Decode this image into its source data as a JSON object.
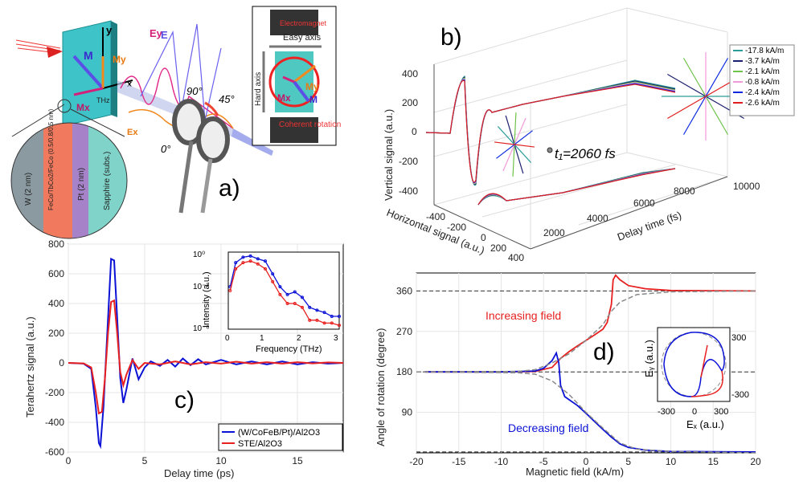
{
  "panels": {
    "a": {
      "label": "a)",
      "layer_labels": [
        "W (2 nm)",
        "FeCo/TbCo2/FeCo (0.5/0.8/0.5 nm)",
        "Pt (2 nm)",
        "Sapphire (subs.)"
      ],
      "vector_labels": {
        "M": "M",
        "My": "My",
        "Mx": "Mx",
        "Ey": "Ey",
        "Ex": "Ex",
        "E": "E",
        "y": "y",
        "x": "x",
        "THz": "THz"
      },
      "angles": [
        "90°",
        "45°",
        "0°"
      ],
      "inset": {
        "top": "Electromagnet",
        "easy": "Easy axis",
        "hard": "Hard axis",
        "bottom": "Coherent rotation",
        "M": "M",
        "My": "My",
        "Mx": "Mx"
      }
    },
    "b": {
      "label": "b)",
      "annotation": "t₁=2060 fs",
      "legend": [
        "-17.8 kA/m",
        "-3.7 kA/m",
        "-2.1 kA/m",
        "-0.8 kA/m",
        "-2.4 kA/m",
        "-2.6 kA/m"
      ],
      "colors": [
        "#2a9d9a",
        "#1a1f6e",
        "#6fc24a",
        "#f29ad8",
        "#0b2ae0",
        "#e02020"
      ],
      "ylabel": "Vertical signal (a.u.)",
      "xlabel": "Horizontal signal (a.u.)",
      "zlabel": "Delay time (fs)",
      "yticks": [
        "400",
        "200",
        "0",
        "-200",
        "-400"
      ],
      "xticks": [
        "-400",
        "-200",
        "0",
        "200",
        "400"
      ],
      "zticks": [
        "2000",
        "4000",
        "6000",
        "8000",
        "10000"
      ]
    },
    "c": {
      "label": "c)",
      "xlabel": "Delay time (ps)",
      "ylabel": "Terahertz signal (a.u.)",
      "legend": [
        "(W/CoFeB/Pt)/Al2O3",
        "STE/Al2O3"
      ],
      "inset": {
        "xlabel": "Frequency (THz)",
        "ylabel": "Intensity (a.u.)",
        "yticks": [
          "10⁰",
          "10⁻³",
          "10⁻⁶"
        ],
        "xticks": [
          "0",
          "1",
          "2",
          "3"
        ]
      }
    },
    "d": {
      "label": "d)",
      "xlabel": "Magnetic field (kA/m)",
      "ylabel": "Angle of rotation (degree)",
      "annotations": [
        "Increasing field",
        "Decreasing field"
      ],
      "inset": {
        "xlabel": "Eₓ (a.u.)",
        "ylabel": "Eᵧ (a.u.)",
        "xticks": [
          "-300",
          "0",
          "300"
        ],
        "yticks": [
          "300",
          "-300"
        ]
      }
    }
  },
  "chart_data": [
    {
      "type": "line",
      "panel": "c",
      "xlabel": "Delay time (ps)",
      "ylabel": "Terahertz signal (a.u.)",
      "xlim": [
        0,
        18
      ],
      "ylim": [
        -600,
        800
      ],
      "xticks": [
        0,
        5,
        10,
        15
      ],
      "yticks": [
        -600,
        -400,
        -200,
        0,
        200,
        400,
        600,
        800
      ],
      "grid": true,
      "legend_position": "bottom-right",
      "series": [
        {
          "name": "(W/CoFeB/Pt)/Al2O3",
          "color": "#0b12d6",
          "x": [
            0,
            1.0,
            1.5,
            1.8,
            2.0,
            2.1,
            2.3,
            2.6,
            2.8,
            3.0,
            3.2,
            3.4,
            3.6,
            3.8,
            4.2,
            4.6,
            5.0,
            5.4,
            6.0,
            6.5,
            7.0,
            7.5,
            8.0,
            8.5,
            9.0,
            10.0,
            11.0,
            12.0,
            13.0,
            14.0,
            15.0,
            16.0,
            17.0,
            18.0
          ],
          "y": [
            0,
            -5,
            -40,
            -300,
            -540,
            -560,
            -300,
            300,
            700,
            690,
            300,
            -100,
            -270,
            -180,
            30,
            -110,
            -30,
            10,
            -20,
            20,
            -25,
            30,
            -15,
            25,
            -10,
            20,
            -10,
            10,
            -10,
            10,
            -10,
            5,
            -5,
            0
          ]
        },
        {
          "name": "STE/Al2O3",
          "color": "#e82020",
          "x": [
            0,
            1.0,
            1.5,
            1.8,
            2.0,
            2.2,
            2.4,
            2.6,
            2.8,
            3.0,
            3.2,
            3.4,
            3.6,
            3.8,
            4.2,
            4.6,
            5.0,
            6.0,
            7.0,
            8.0,
            9.0,
            10.0,
            11.0,
            12.0,
            13.0,
            14.0,
            15.0,
            16.0,
            17.0,
            18.0
          ],
          "y": [
            0,
            -3,
            -30,
            -200,
            -340,
            -330,
            -100,
            200,
            410,
            420,
            200,
            -60,
            -150,
            -80,
            20,
            -40,
            0,
            -10,
            10,
            -10,
            5,
            -5,
            8,
            -5,
            5,
            -5,
            5,
            -3,
            3,
            0
          ]
        }
      ]
    },
    {
      "type": "line",
      "panel": "c-inset",
      "xlabel": "Frequency (THz)",
      "ylabel": "Intensity (a.u.)",
      "yscale": "log",
      "xlim": [
        0,
        3
      ],
      "ylim": [
        1e-06,
        1
      ],
      "series": [
        {
          "name": "(W/CoFeB/Pt)/Al2O3",
          "color": "#0b12d6",
          "x": [
            0.05,
            0.2,
            0.4,
            0.6,
            0.8,
            1.0,
            1.2,
            1.4,
            1.6,
            1.8,
            2.0,
            2.2,
            2.4,
            2.6,
            2.8,
            3.0
          ],
          "y": [
            0.002,
            0.15,
            0.4,
            0.5,
            0.3,
            0.2,
            0.02,
            0.002,
            0.0005,
            0.0008,
            0.0003,
            5e-05,
            3e-05,
            2e-05,
            1e-05,
            1e-05
          ]
        },
        {
          "name": "STE/Al2O3",
          "color": "#e82020",
          "x": [
            0.05,
            0.2,
            0.4,
            0.6,
            0.8,
            1.0,
            1.2,
            1.4,
            1.6,
            1.8,
            2.0,
            2.2,
            2.4,
            2.6,
            2.8,
            3.0
          ],
          "y": [
            0.001,
            0.05,
            0.15,
            0.2,
            0.12,
            0.05,
            0.005,
            0.0005,
            0.0001,
            0.0001,
            5e-05,
            5e-06,
            5e-06,
            3e-06,
            3e-06,
            2e-06
          ]
        }
      ]
    },
    {
      "type": "line",
      "panel": "d",
      "xlabel": "Magnetic field (kA/m)",
      "ylabel": "Angle of rotation (degree)",
      "xlim": [
        -20,
        20
      ],
      "ylim": [
        0,
        400
      ],
      "xticks": [
        -20,
        -15,
        -10,
        -5,
        0,
        5,
        10,
        15,
        20
      ],
      "yticks": [
        90,
        180,
        270,
        360
      ],
      "grid": true,
      "series": [
        {
          "name": "Increasing field",
          "color": "#e82020",
          "x": [
            -19,
            -10,
            -6,
            -4,
            -3,
            -2,
            -1,
            0,
            1,
            2,
            2.5,
            3,
            3.2,
            3.5,
            4,
            5,
            7,
            10,
            20
          ],
          "y": [
            180,
            180,
            181,
            190,
            210,
            225,
            238,
            250,
            262,
            275,
            290,
            330,
            385,
            395,
            385,
            372,
            365,
            361,
            360
          ]
        },
        {
          "name": "Decreasing field",
          "color": "#0b12d6",
          "x": [
            -19,
            -10,
            -6,
            -5,
            -4,
            -3.5,
            -3.2,
            -3,
            -2.5,
            -1,
            0,
            1,
            2,
            3,
            4,
            5,
            7,
            10,
            20
          ],
          "y": [
            180,
            180,
            182,
            188,
            205,
            222,
            200,
            150,
            125,
            105,
            88,
            70,
            52,
            35,
            20,
            12,
            6,
            3,
            2
          ]
        },
        {
          "name": "",
          "color": "#888888",
          "dashed": true,
          "x": [
            -20,
            -8,
            -6,
            -4,
            -2,
            0,
            2,
            3,
            4,
            6,
            10,
            20
          ],
          "y": [
            180,
            181,
            185,
            200,
            220,
            250,
            285,
            315,
            335,
            352,
            358,
            360
          ]
        },
        {
          "name": "",
          "color": "#888888",
          "dashed": true,
          "x": [
            -20,
            -8,
            -6,
            -4,
            -2,
            0,
            2,
            4,
            6,
            10,
            20
          ],
          "y": [
            180,
            178,
            175,
            160,
            130,
            90,
            55,
            22,
            8,
            3,
            0
          ]
        }
      ]
    }
  ]
}
